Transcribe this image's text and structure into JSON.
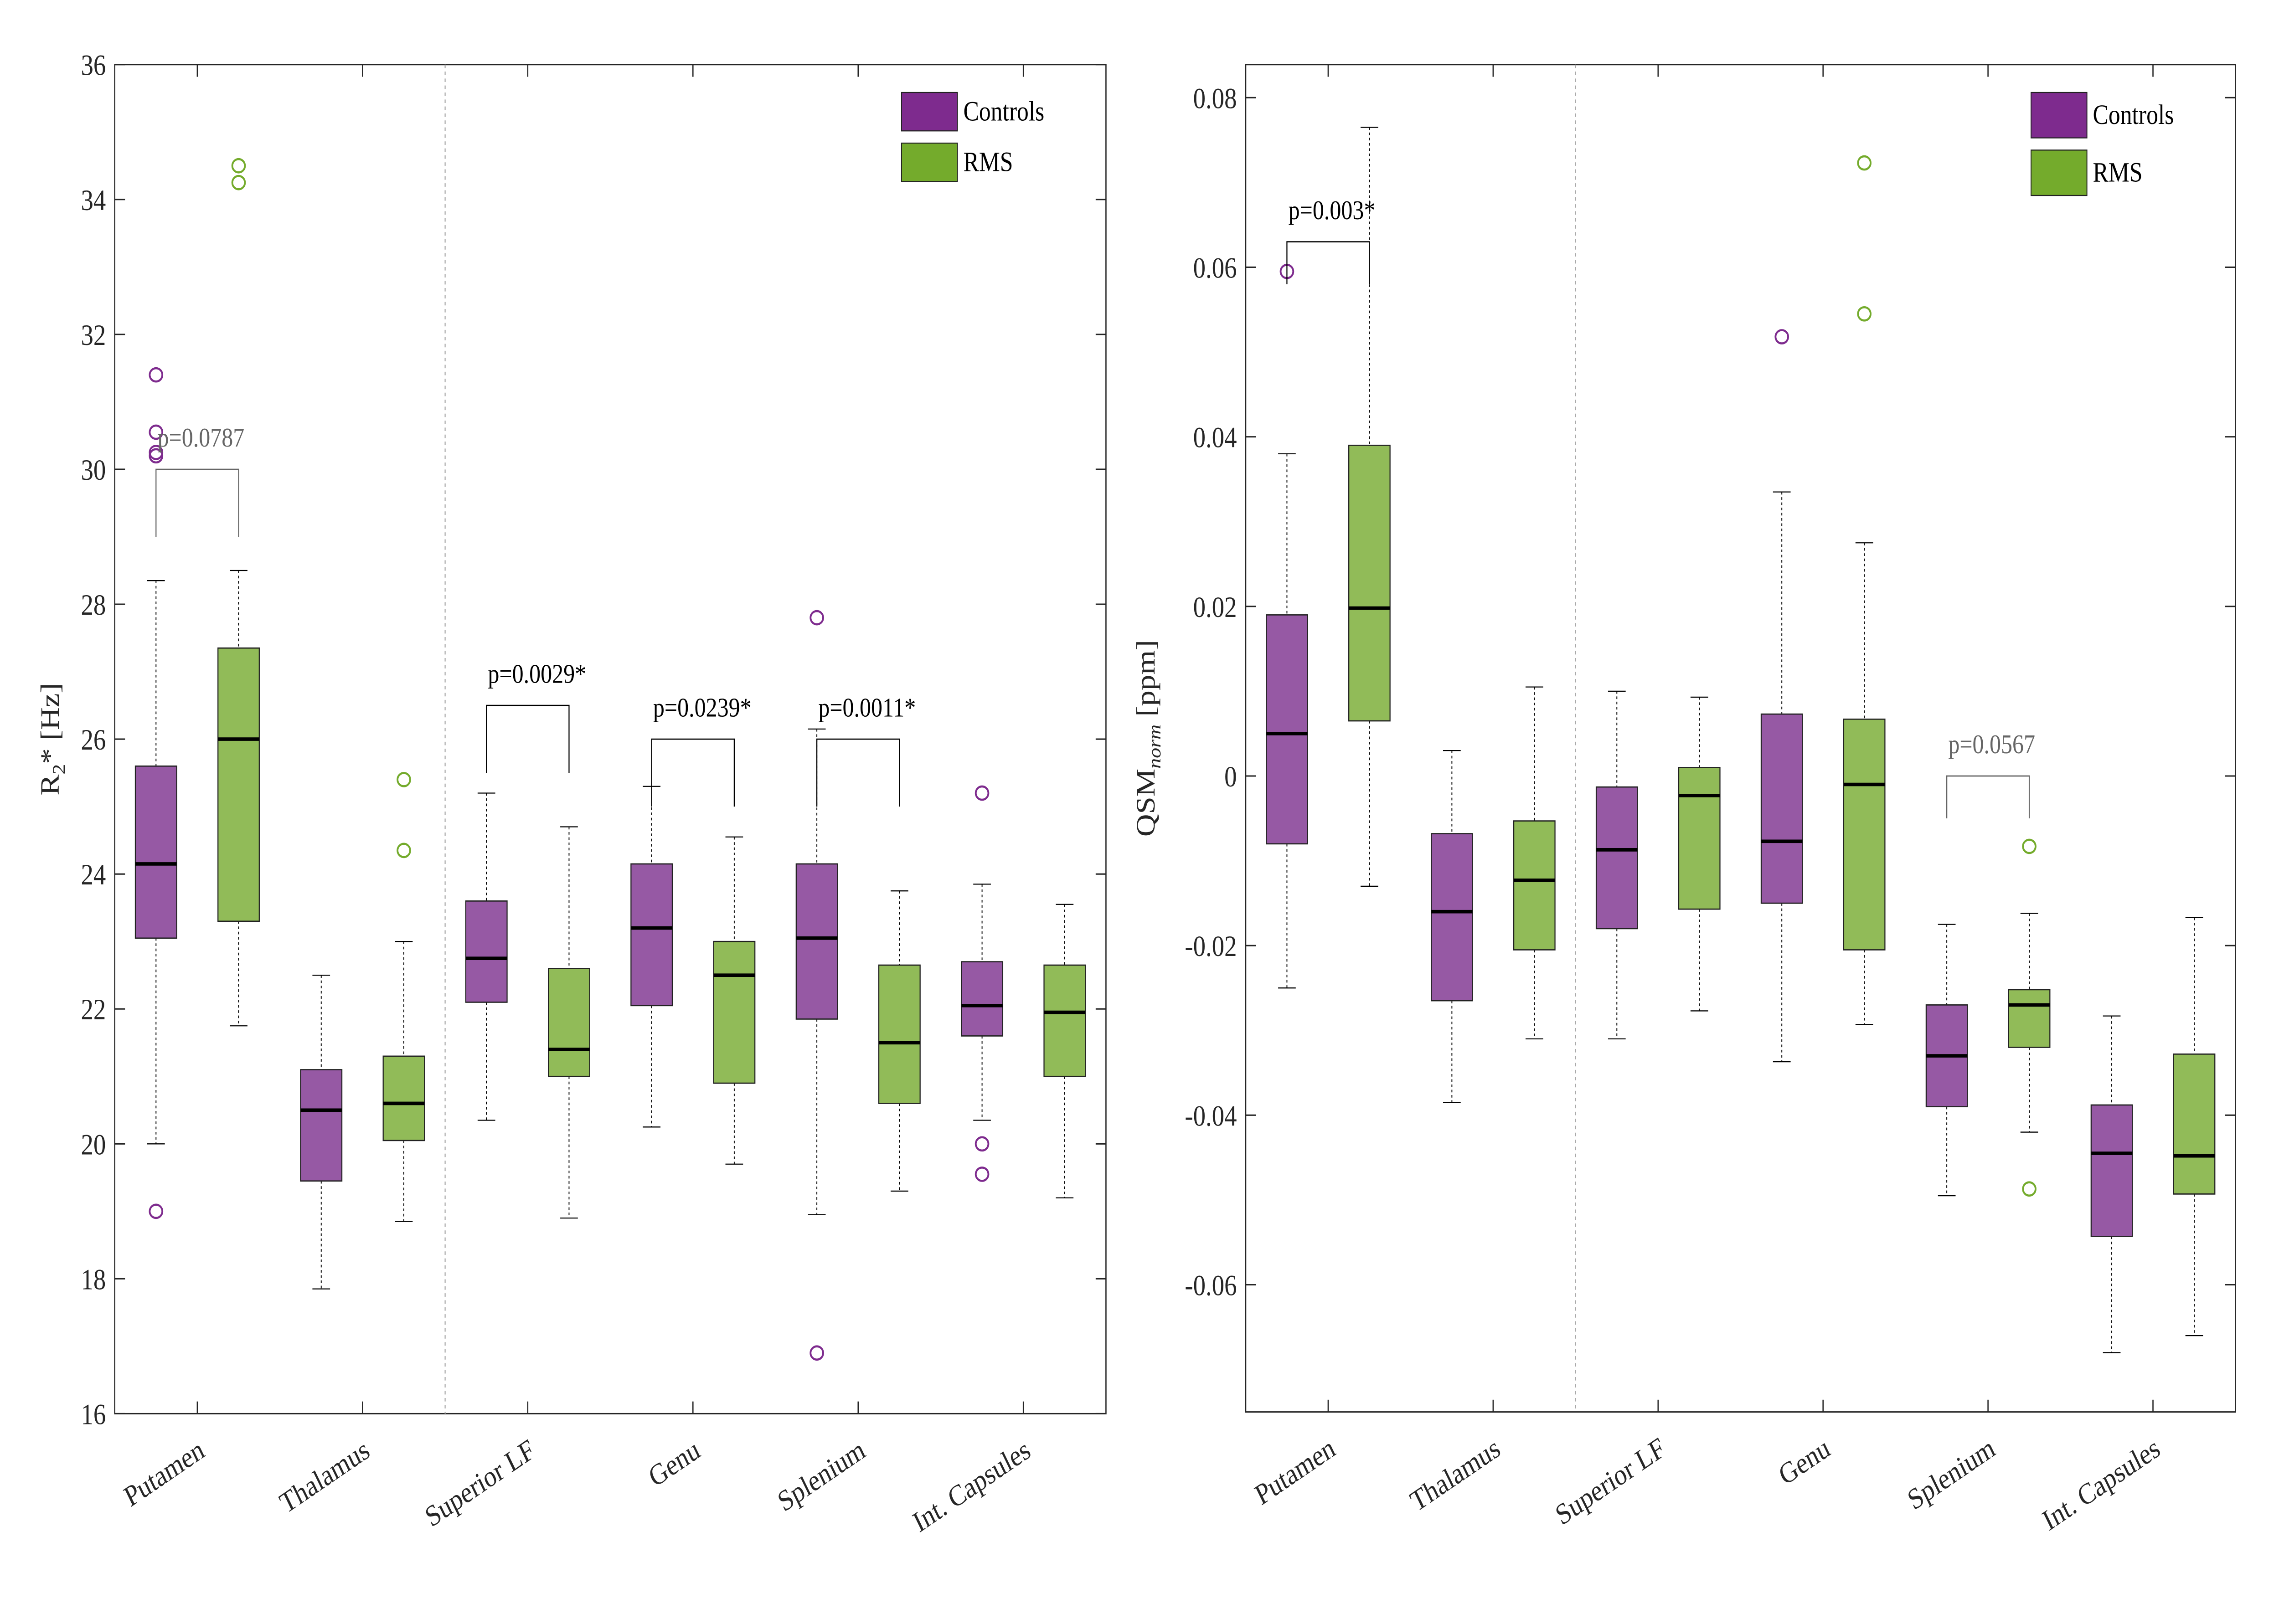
{
  "colors": {
    "controls": "#7e2b8e",
    "controls_box": "#9659a4",
    "rms": "#74ab2c",
    "rms_box": "#91bb58"
  },
  "chart_data": [
    {
      "type": "box",
      "ylabel": {
        "base": "R",
        "sub": "2",
        "rest": "* [Hz]"
      },
      "ylim": [
        16,
        36
      ],
      "yticks": [
        16,
        18,
        20,
        22,
        24,
        26,
        28,
        30,
        32,
        34,
        36
      ],
      "grid": false,
      "legend_position": "top-right",
      "legend": [
        "Controls",
        "RMS"
      ],
      "divider_after_category": 2,
      "categories": [
        "Putamen",
        "Thalamus",
        "Superior LF",
        "Genu",
        "Splenium",
        "Int. Capsules"
      ],
      "series": [
        {
          "name": "Controls",
          "boxes": [
            {
              "whisker_low": 20.0,
              "q1": 23.05,
              "median": 24.15,
              "q3": 25.6,
              "whisker_high": 28.35,
              "outliers": [
                31.4,
                30.55,
                30.25,
                30.2,
                19.0
              ]
            },
            {
              "whisker_low": 17.85,
              "q1": 19.45,
              "median": 20.5,
              "q3": 21.1,
              "whisker_high": 22.5,
              "outliers": []
            },
            {
              "whisker_low": 20.35,
              "q1": 22.1,
              "median": 22.75,
              "q3": 23.6,
              "whisker_high": 25.2,
              "outliers": []
            },
            {
              "whisker_low": 20.25,
              "q1": 22.05,
              "median": 23.2,
              "q3": 24.15,
              "whisker_high": 25.3,
              "outliers": []
            },
            {
              "whisker_low": 18.95,
              "q1": 21.85,
              "median": 23.05,
              "q3": 24.15,
              "whisker_high": 26.15,
              "outliers": [
                27.8,
                16.9
              ]
            },
            {
              "whisker_low": 20.35,
              "q1": 21.6,
              "median": 22.05,
              "q3": 22.7,
              "whisker_high": 23.85,
              "outliers": [
                25.2,
                20.0,
                19.55
              ]
            }
          ]
        },
        {
          "name": "RMS",
          "boxes": [
            {
              "whisker_low": 21.75,
              "q1": 23.3,
              "median": 26.0,
              "q3": 27.35,
              "whisker_high": 28.5,
              "outliers": [
                34.5,
                34.25
              ]
            },
            {
              "whisker_low": 18.85,
              "q1": 20.05,
              "median": 20.6,
              "q3": 21.3,
              "whisker_high": 23.0,
              "outliers": [
                25.4,
                24.35
              ]
            },
            {
              "whisker_low": 18.9,
              "q1": 21.0,
              "median": 21.4,
              "q3": 22.6,
              "whisker_high": 24.7,
              "outliers": []
            },
            {
              "whisker_low": 19.7,
              "q1": 20.9,
              "median": 22.5,
              "q3": 23.0,
              "whisker_high": 24.55,
              "outliers": []
            },
            {
              "whisker_low": 19.3,
              "q1": 20.6,
              "median": 21.5,
              "q3": 22.65,
              "whisker_high": 23.75,
              "outliers": []
            },
            {
              "whisker_low": 19.2,
              "q1": 21.0,
              "median": 21.95,
              "q3": 22.65,
              "whisker_high": 23.55,
              "outliers": []
            }
          ]
        }
      ],
      "annotations": [
        {
          "category": "Putamen",
          "text": "p=0.0787",
          "significant": false,
          "bar_y": 30,
          "leg_y": 29
        },
        {
          "category": "Superior LF",
          "text": "p=0.0029*",
          "significant": true,
          "bar_y": 26.5,
          "leg_y": 25.5
        },
        {
          "category": "Genu",
          "text": "p=0.0239*",
          "significant": true,
          "bar_y": 26,
          "leg_y": 25
        },
        {
          "category": "Splenium",
          "text": "p=0.0011*",
          "significant": true,
          "bar_y": 26,
          "leg_y": 25
        }
      ]
    },
    {
      "type": "box",
      "ylabel": {
        "base": "QSM",
        "sub": "norm",
        "rest": "  [ppm]"
      },
      "ylim": [
        -0.075,
        0.0839
      ],
      "yticks": [
        -0.06,
        -0.04,
        -0.02,
        0,
        0.02,
        0.04,
        0.06,
        0.08
      ],
      "ytick_labels": [
        "-0.06",
        "-0.04",
        "-0.02",
        "0",
        "0.02",
        "0.04",
        "0.06",
        "0.08"
      ],
      "grid": false,
      "legend_position": "top-right",
      "legend": [
        "Controls",
        "RMS"
      ],
      "divider_after_category": 2,
      "categories": [
        "Putamen",
        "Thalamus",
        "Superior LF",
        "Genu",
        "Splenium",
        "Int. Capsules"
      ],
      "series": [
        {
          "name": "Controls",
          "boxes": [
            {
              "whisker_low": -0.025,
              "q1": -0.008,
              "median": 0.005,
              "q3": 0.019,
              "whisker_high": 0.038,
              "outliers": [
                0.0595
              ]
            },
            {
              "whisker_low": -0.0385,
              "q1": -0.0265,
              "median": -0.016,
              "q3": -0.0068,
              "whisker_high": 0.003,
              "outliers": []
            },
            {
              "whisker_low": -0.031,
              "q1": -0.018,
              "median": -0.0087,
              "q3": -0.0013,
              "whisker_high": 0.01,
              "outliers": []
            },
            {
              "whisker_low": -0.0337,
              "q1": -0.015,
              "median": -0.0077,
              "q3": 0.0073,
              "whisker_high": 0.0335,
              "outliers": [
                0.0518
              ]
            },
            {
              "whisker_low": -0.0495,
              "q1": -0.039,
              "median": -0.033,
              "q3": -0.027,
              "whisker_high": -0.0175,
              "outliers": []
            },
            {
              "whisker_low": -0.068,
              "q1": -0.0543,
              "median": -0.0445,
              "q3": -0.0388,
              "whisker_high": -0.0283,
              "outliers": []
            }
          ]
        },
        {
          "name": "RMS",
          "boxes": [
            {
              "whisker_low": -0.013,
              "q1": 0.0065,
              "median": 0.0198,
              "q3": 0.039,
              "whisker_high": 0.0765,
              "outliers": []
            },
            {
              "whisker_low": -0.031,
              "q1": -0.0205,
              "median": -0.0123,
              "q3": -0.0053,
              "whisker_high": 0.0105,
              "outliers": []
            },
            {
              "whisker_low": -0.0277,
              "q1": -0.0157,
              "median": -0.0023,
              "q3": 0.001,
              "whisker_high": 0.0093,
              "outliers": []
            },
            {
              "whisker_low": -0.0293,
              "q1": -0.0205,
              "median": -0.001,
              "q3": 0.0067,
              "whisker_high": 0.0275,
              "outliers": [
                0.0723,
                0.0545
              ]
            },
            {
              "whisker_low": -0.042,
              "q1": -0.032,
              "median": -0.027,
              "q3": -0.0252,
              "whisker_high": -0.0162,
              "outliers": [
                -0.0083,
                -0.0487
              ]
            },
            {
              "whisker_low": -0.066,
              "q1": -0.0493,
              "median": -0.0448,
              "q3": -0.0328,
              "whisker_high": -0.0167,
              "outliers": []
            }
          ]
        }
      ],
      "annotations": [
        {
          "category": "Putamen",
          "text": "p=0.003*",
          "significant": true,
          "bar_y": 0.063,
          "leg_y": 0.058
        },
        {
          "category": "Splenium",
          "text": "p=0.0567",
          "significant": false,
          "bar_y": 0.0,
          "leg_y": -0.005
        }
      ]
    }
  ]
}
